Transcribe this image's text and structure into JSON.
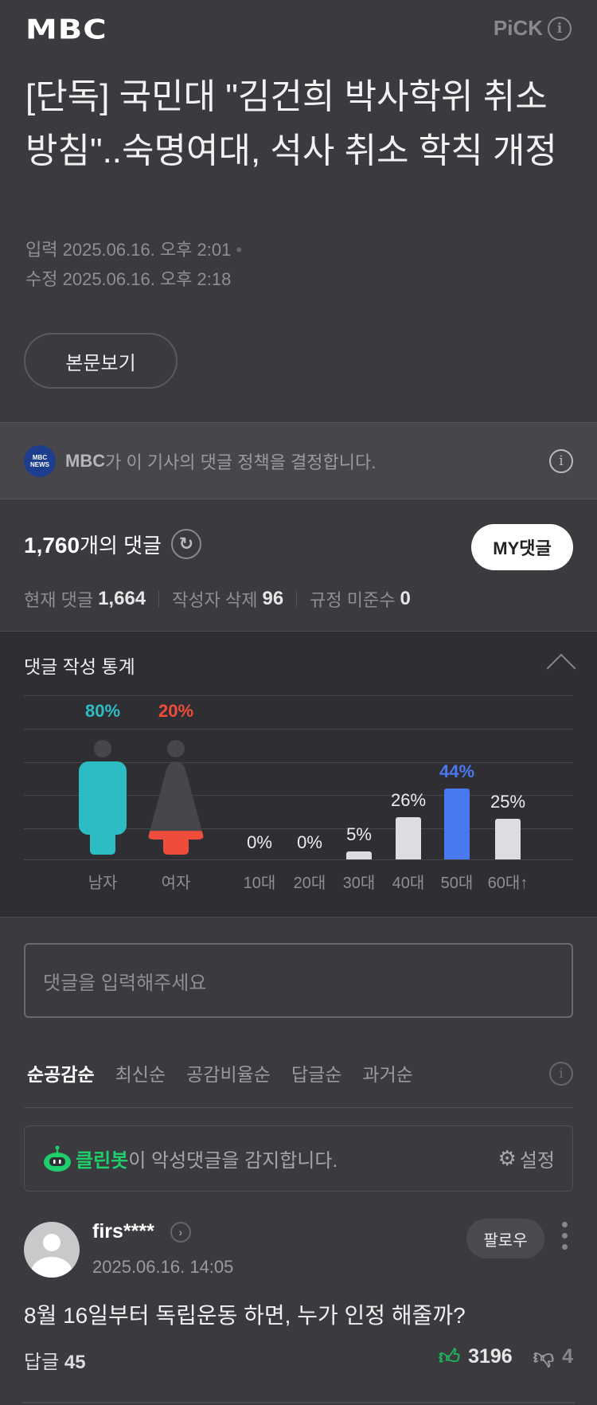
{
  "header": {
    "logo": "MBC",
    "pick_label": "PiCK"
  },
  "article": {
    "title": "[단독] 국민대 \"김건희 박사학위 취소 방침\"..숙명여대, 석사 취소 학칙 개정",
    "input_label": "입력",
    "input_time": "2025.06.16. 오후 2:01",
    "edit_label": "수정",
    "edit_time": "2025.06.16. 오후 2:18",
    "view_body_button": "본문보기"
  },
  "policy": {
    "badge": "MBC NEWS",
    "press": "MBC",
    "text": "가 이 기사의 댓글 정책을 결정합니다."
  },
  "comments_summary": {
    "count": "1,760",
    "count_suffix": "개의 댓글",
    "my_button": "MY댓글",
    "current_label": "현재 댓글",
    "current": "1,664",
    "deleted_label": "작성자 삭제",
    "deleted": "96",
    "violation_label": "규정 미준수",
    "violation": "0"
  },
  "stats": {
    "title": "댓글 작성 통계"
  },
  "chart_data": [
    {
      "type": "bar",
      "categories": [
        "남자",
        "여자"
      ],
      "values": [
        80,
        20
      ],
      "value_labels": [
        "80%",
        "20%"
      ],
      "colors": {
        "남자": "#2bbcc4",
        "여자": "#ef4c3c",
        "empty": "#46464b"
      }
    },
    {
      "type": "bar",
      "categories": [
        "10대",
        "20대",
        "30대",
        "40대",
        "50대",
        "60대↑"
      ],
      "values": [
        0,
        0,
        5,
        26,
        44,
        25
      ],
      "value_labels": [
        "0%",
        "0%",
        "5%",
        "26%",
        "44%",
        "25%"
      ],
      "colors": {
        "default": "#dcdde0",
        "highlight": "#4a78f0"
      },
      "grid": true
    }
  ],
  "input": {
    "placeholder": "댓글을 입력해주세요"
  },
  "sort_tabs": [
    {
      "label": "순공감순",
      "active": true
    },
    {
      "label": "최신순"
    },
    {
      "label": "공감비율순"
    },
    {
      "label": "답글순"
    },
    {
      "label": "과거순"
    }
  ],
  "cleanbot": {
    "name": "클린봇",
    "text": "이 악성댓글을 감지합니다.",
    "settings": "설정"
  },
  "comment": {
    "user": "firs****",
    "date": "2025.06.16. 14:05",
    "follow": "팔로우",
    "text": "8월 16일부터 독립운동 하면, 누가 인정 해줄까?",
    "reply_label": "답글",
    "reply_count": "45",
    "likes": "3196",
    "dislikes": "4"
  }
}
